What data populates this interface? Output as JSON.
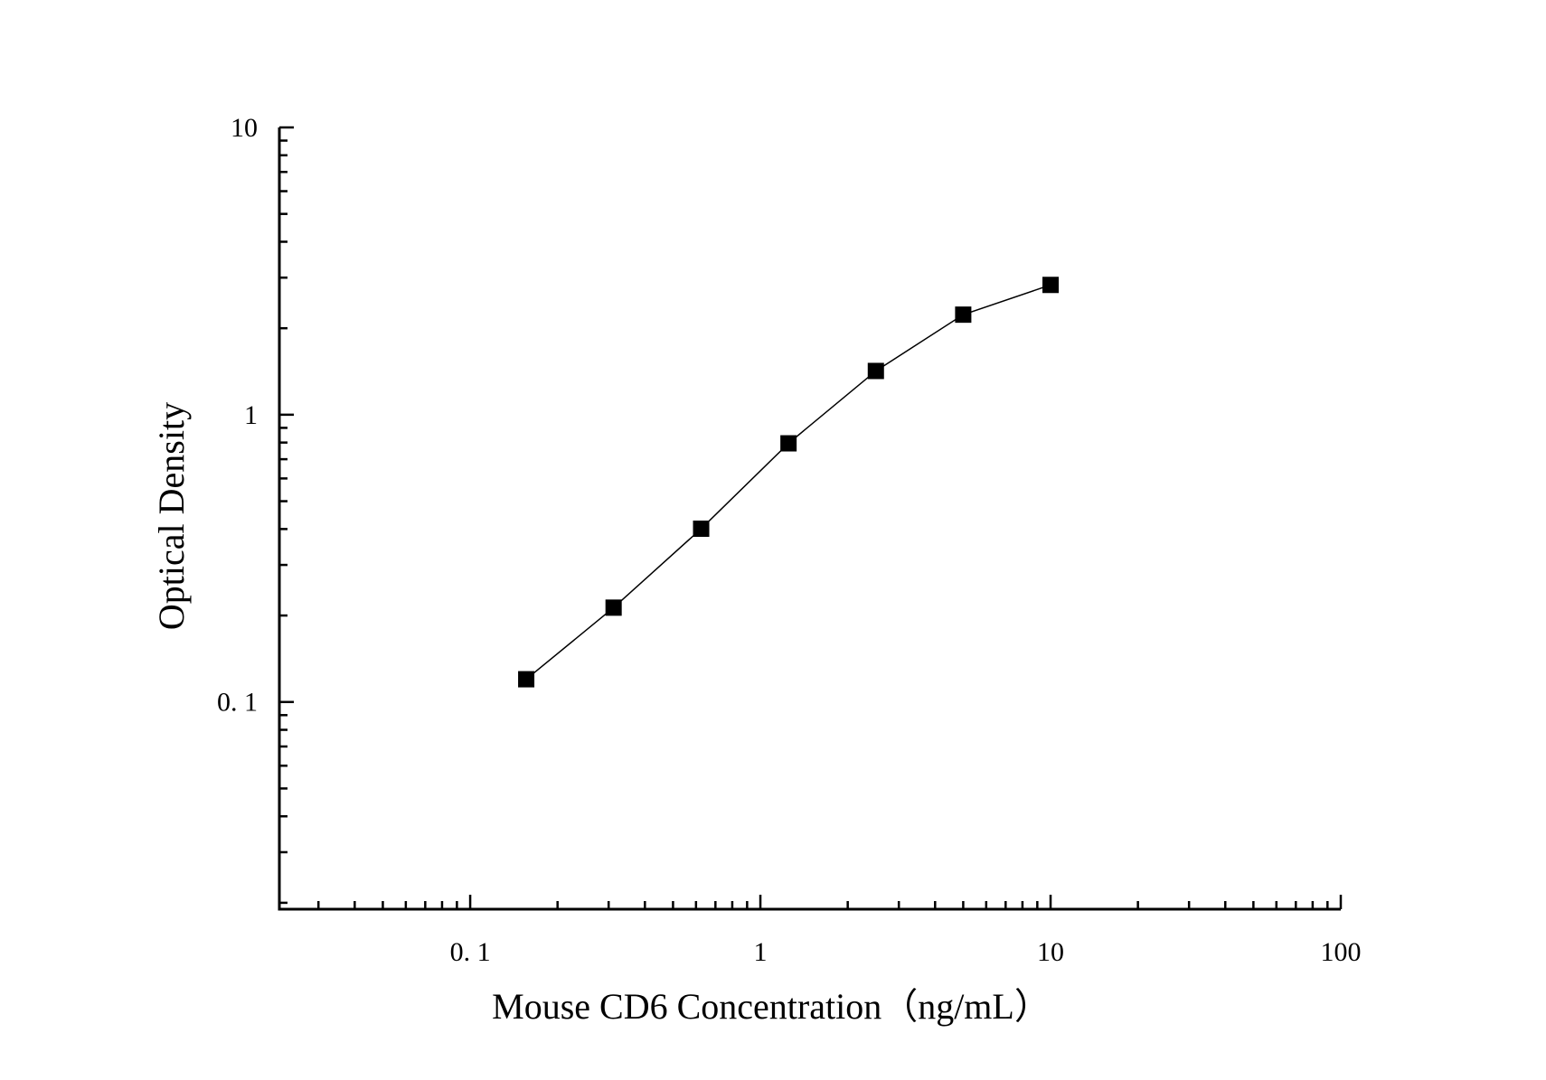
{
  "chart_data": {
    "type": "line",
    "title": "",
    "xlabel": "Mouse CD6 Concentration（ng/mL）",
    "ylabel": "Optical Density",
    "x_scale": "log",
    "y_scale": "log",
    "xlim": [
      0.022,
      100
    ],
    "ylim": [
      0.019,
      10
    ],
    "x_ticks": [
      {
        "value": 0.1,
        "label": "0. 1"
      },
      {
        "value": 1,
        "label": "1"
      },
      {
        "value": 10,
        "label": "10"
      },
      {
        "value": 100,
        "label": "100"
      }
    ],
    "y_ticks": [
      {
        "value": 0.1,
        "label": "0. 1"
      },
      {
        "value": 1,
        "label": "1"
      },
      {
        "value": 10,
        "label": "10"
      }
    ],
    "grid": false,
    "legend": "none",
    "marker": "square",
    "color": "#000000",
    "series": [
      {
        "x": [
          0.156,
          0.312,
          0.625,
          1.25,
          2.5,
          5,
          10
        ],
        "y": [
          0.12,
          0.213,
          0.401,
          0.795,
          1.42,
          2.23,
          2.83
        ]
      }
    ]
  }
}
